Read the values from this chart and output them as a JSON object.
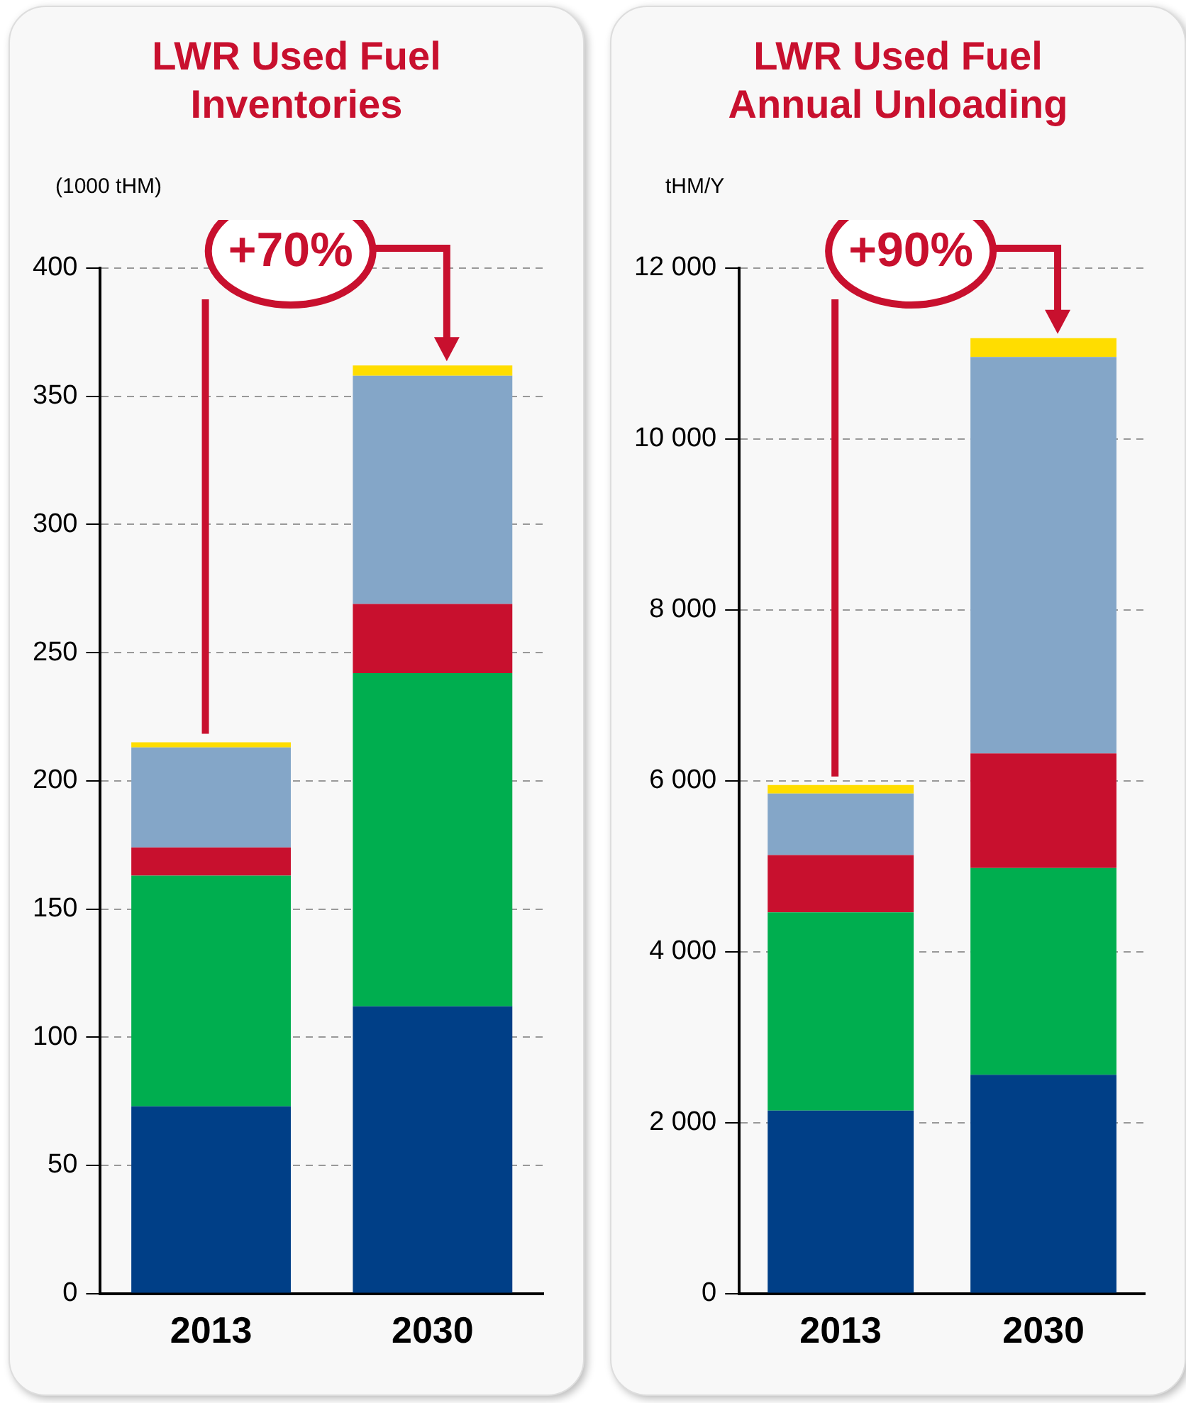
{
  "chart_data": [
    {
      "type": "bar",
      "title": "LWR  Used Fuel\nInventories",
      "ylabel": "(1000 tHM)",
      "categories": [
        "2013",
        "2030"
      ],
      "stacked": true,
      "grid": "y",
      "ylim": [
        0,
        400
      ],
      "yticks": [
        0,
        50,
        100,
        150,
        200,
        250,
        300,
        350,
        400
      ],
      "series": [
        {
          "color": "#003f87",
          "values": [
            73,
            112
          ]
        },
        {
          "color": "#00ae4f",
          "values": [
            90,
            130
          ]
        },
        {
          "color": "#c8102e",
          "values": [
            11,
            27
          ]
        },
        {
          "color": "#84a6c8",
          "values": [
            39,
            89
          ]
        },
        {
          "color": "#ffdd00",
          "values": [
            2,
            4
          ]
        }
      ],
      "annotations": [
        "+70%"
      ]
    },
    {
      "type": "bar",
      "title": "LWR  Used Fuel\nAnnual  Unloading",
      "ylabel": "tHM/Y",
      "categories": [
        "2013",
        "2030"
      ],
      "stacked": true,
      "grid": "y",
      "ylim": [
        0,
        12000
      ],
      "yticks": [
        0,
        {
          "value": 2000,
          "label": "2 000"
        },
        {
          "value": 4000,
          "label": "4 000"
        },
        {
          "value": 6000,
          "label": "6 000"
        },
        {
          "value": 8000,
          "label": "8 000"
        },
        {
          "value": 10000,
          "label": "10 000"
        },
        {
          "value": 12000,
          "label": "12 000"
        }
      ],
      "series": [
        {
          "color": "#003f87",
          "values": [
            2140,
            2560
          ]
        },
        {
          "color": "#00ae4f",
          "values": [
            2320,
            2420
          ]
        },
        {
          "color": "#c8102e",
          "values": [
            670,
            1340
          ]
        },
        {
          "color": "#84a6c8",
          "values": [
            720,
            4640
          ]
        },
        {
          "color": "#ffdd00",
          "values": [
            100,
            220
          ]
        }
      ],
      "annotations": [
        "+90%"
      ]
    }
  ]
}
